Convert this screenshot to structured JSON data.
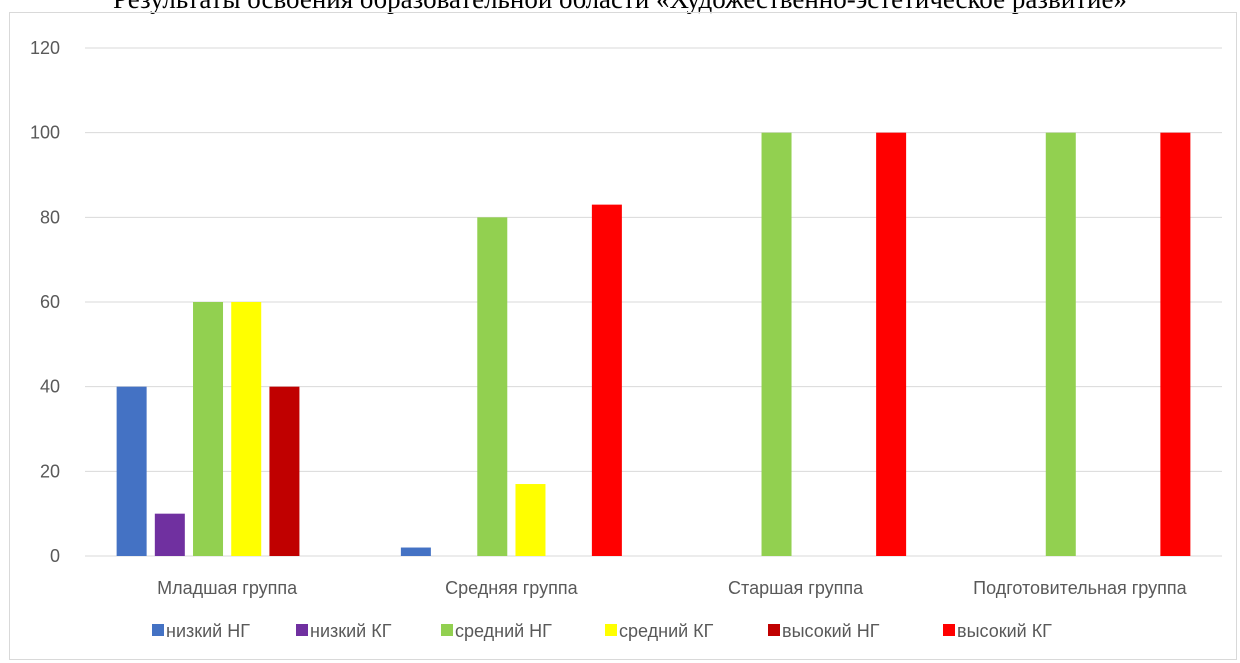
{
  "chart_data": {
    "type": "bar",
    "title": "Результаты освоения образовательной области «Художественно-эстетическое развитие»",
    "categories": [
      "Младшая группа",
      "Средняя группа",
      "Старшая группа",
      "Подготовительная группа"
    ],
    "ylim": [
      0,
      120
    ],
    "yticks": [
      0,
      20,
      40,
      60,
      80,
      100,
      120
    ],
    "grid": true,
    "legend_position": "bottom",
    "series": [
      {
        "name": "низкий НГ",
        "color": "#4472c4",
        "values": [
          40,
          2,
          0,
          0
        ]
      },
      {
        "name": "низкий КГ",
        "color": "#7030a0",
        "values": [
          10,
          0,
          0,
          0
        ]
      },
      {
        "name": "средний НГ",
        "color": "#92d050",
        "values": [
          60,
          80,
          100,
          100
        ]
      },
      {
        "name": "средний КГ",
        "color": "#ffff00",
        "values": [
          60,
          17,
          0,
          0
        ]
      },
      {
        "name": "высокий НГ",
        "color": "#c00000",
        "values": [
          40,
          0,
          0,
          0
        ]
      },
      {
        "name": "высокий КГ",
        "color": "#ff0000",
        "values": [
          0,
          83,
          100,
          100
        ]
      }
    ]
  }
}
